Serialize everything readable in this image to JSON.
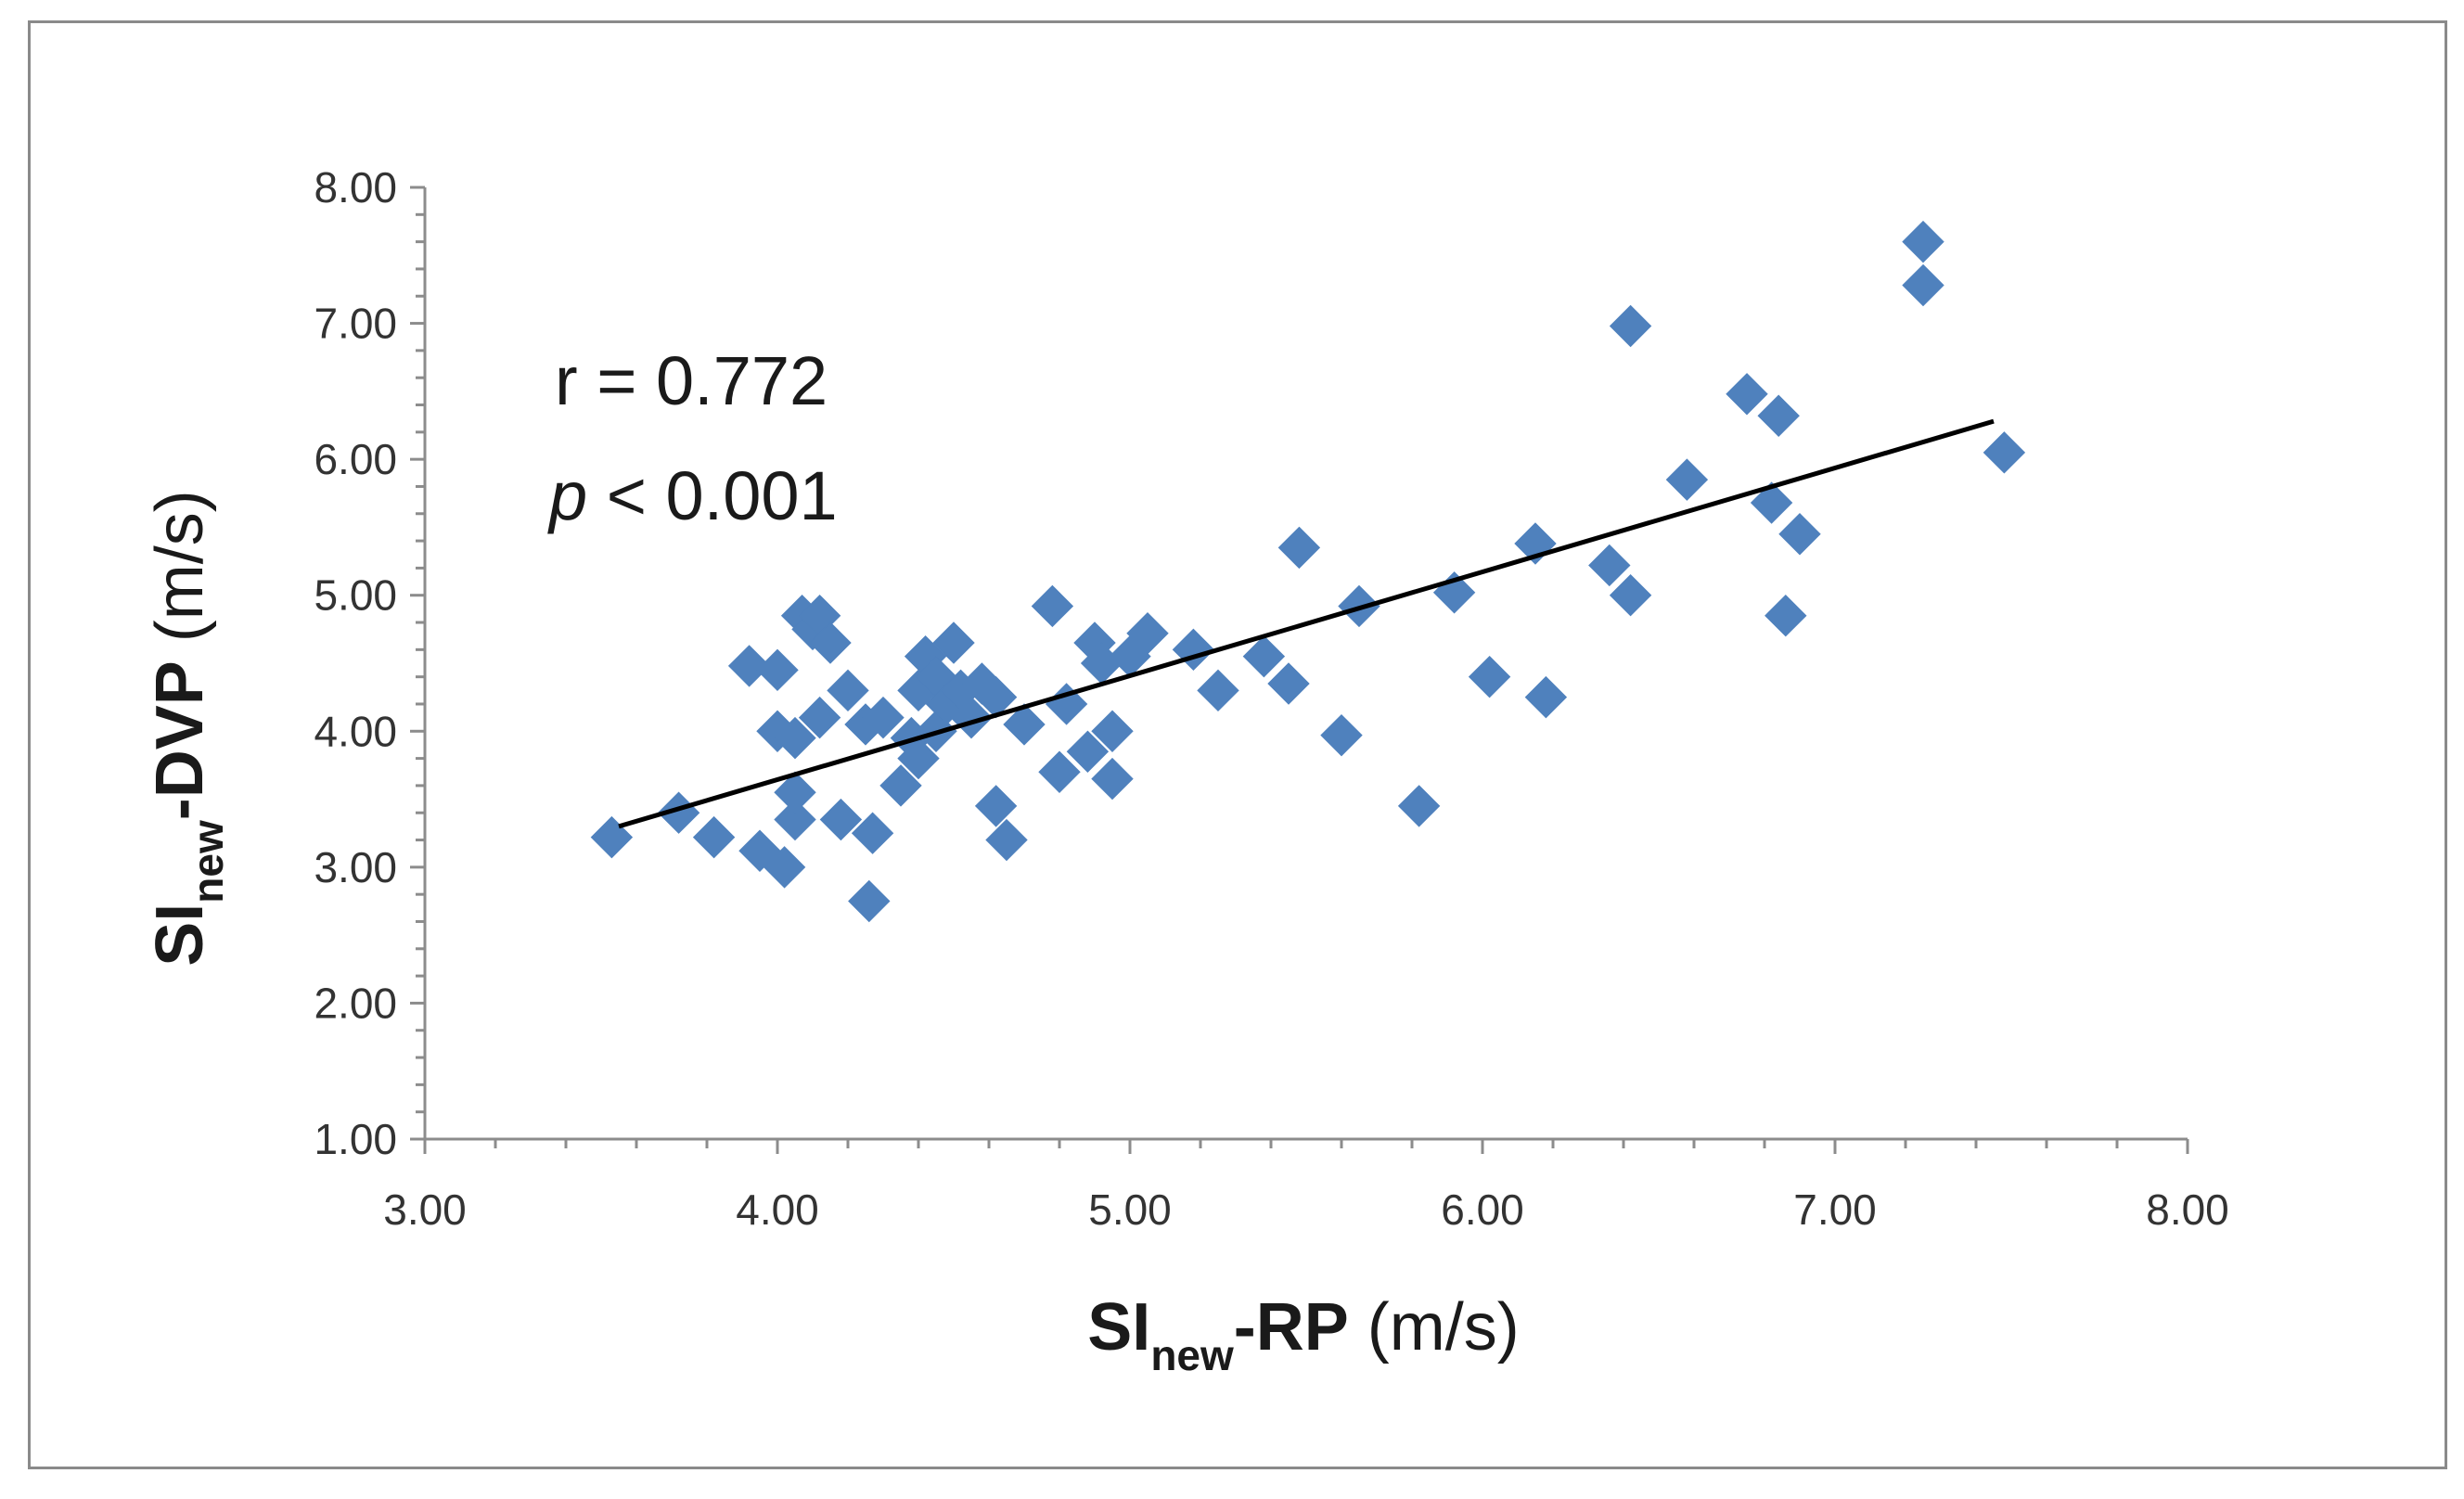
{
  "chart_data": {
    "type": "scatter",
    "title": "",
    "xlabel": {
      "main": "SI",
      "sub": "new",
      "suffix": "-RP",
      "unit": " (m/s)"
    },
    "ylabel": {
      "main": "SI",
      "sub": "new",
      "suffix": "-DVP",
      "unit": "  (m/s)"
    },
    "xlim": [
      3.0,
      8.0
    ],
    "ylim": [
      1.0,
      8.0
    ],
    "x_ticks": [
      "3.00",
      "4.00",
      "5.00",
      "6.00",
      "7.00",
      "8.00"
    ],
    "y_ticks": [
      "1.00",
      "2.00",
      "3.00",
      "4.00",
      "5.00",
      "6.00",
      "7.00",
      "8.00"
    ],
    "grid": false,
    "legend": "none",
    "marker": "diamond",
    "marker_color": "#4f81bd",
    "trendline": {
      "type": "linear",
      "x": [
        3.55,
        7.45
      ],
      "y": [
        3.3,
        6.28
      ],
      "color": "#000000"
    },
    "annotations": [
      {
        "id": "r",
        "label": "r",
        "text": " = 0.772"
      },
      {
        "id": "p",
        "label": "p",
        "text": " < 0.001"
      }
    ],
    "series": [
      {
        "name": "SInew-DVP vs SInew-RP",
        "points": [
          [
            3.53,
            3.22
          ],
          [
            3.72,
            3.4
          ],
          [
            3.82,
            3.22
          ],
          [
            3.92,
            4.48
          ],
          [
            3.95,
            3.12
          ],
          [
            4.0,
            4.45
          ],
          [
            4.0,
            4.0
          ],
          [
            4.02,
            3.0
          ],
          [
            4.05,
            3.35
          ],
          [
            4.05,
            3.55
          ],
          [
            4.05,
            3.95
          ],
          [
            4.07,
            4.85
          ],
          [
            4.1,
            4.75
          ],
          [
            4.12,
            4.1
          ],
          [
            4.12,
            4.85
          ],
          [
            4.15,
            4.65
          ],
          [
            4.18,
            3.35
          ],
          [
            4.2,
            4.3
          ],
          [
            4.25,
            4.05
          ],
          [
            4.26,
            2.75
          ],
          [
            4.27,
            3.25
          ],
          [
            4.3,
            4.1
          ],
          [
            4.35,
            3.6
          ],
          [
            4.38,
            3.95
          ],
          [
            4.4,
            3.8
          ],
          [
            4.4,
            4.3
          ],
          [
            4.42,
            4.55
          ],
          [
            4.45,
            4.0
          ],
          [
            4.45,
            4.4
          ],
          [
            4.48,
            4.2
          ],
          [
            4.5,
            4.65
          ],
          [
            4.52,
            4.3
          ],
          [
            4.55,
            4.1
          ],
          [
            4.58,
            4.35
          ],
          [
            4.62,
            3.45
          ],
          [
            4.62,
            4.25
          ],
          [
            4.65,
            3.2
          ],
          [
            4.7,
            4.05
          ],
          [
            4.78,
            4.92
          ],
          [
            4.8,
            3.7
          ],
          [
            4.82,
            4.2
          ],
          [
            4.88,
            3.85
          ],
          [
            4.9,
            4.65
          ],
          [
            4.92,
            4.5
          ],
          [
            4.95,
            3.65
          ],
          [
            4.95,
            4.0
          ],
          [
            5.0,
            4.55
          ],
          [
            5.05,
            4.72
          ],
          [
            5.18,
            4.6
          ],
          [
            5.25,
            4.3
          ],
          [
            5.38,
            4.55
          ],
          [
            5.45,
            4.35
          ],
          [
            5.48,
            5.35
          ],
          [
            5.6,
            3.97
          ],
          [
            5.65,
            4.92
          ],
          [
            5.82,
            3.45
          ],
          [
            5.92,
            5.02
          ],
          [
            6.02,
            4.4
          ],
          [
            6.15,
            5.38
          ],
          [
            6.18,
            4.25
          ],
          [
            6.36,
            5.22
          ],
          [
            6.42,
            5.0
          ],
          [
            6.42,
            6.98
          ],
          [
            6.58,
            5.85
          ],
          [
            6.75,
            6.48
          ],
          [
            6.82,
            5.68
          ],
          [
            6.84,
            6.32
          ],
          [
            6.86,
            4.85
          ],
          [
            6.9,
            5.45
          ],
          [
            7.25,
            7.6
          ],
          [
            7.25,
            7.28
          ],
          [
            7.48,
            6.05
          ]
        ]
      }
    ]
  }
}
